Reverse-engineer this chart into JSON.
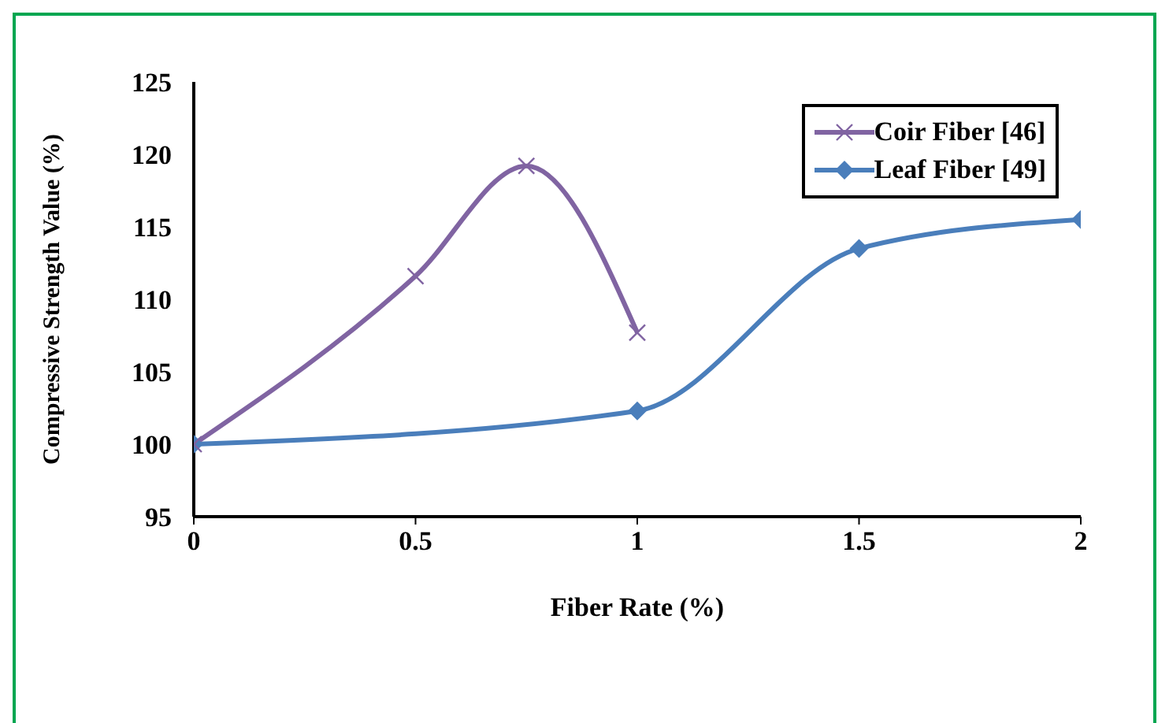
{
  "chart_data": {
    "type": "line",
    "xlabel": "Fiber Rate (%)",
    "ylabel": "Compressive Strength Value (%)",
    "xlim": [
      0,
      2
    ],
    "xticks": [
      0,
      0.5,
      1,
      1.5,
      2
    ],
    "ylim": [
      95,
      125
    ],
    "yticks": [
      95,
      100,
      105,
      110,
      115,
      120,
      125
    ],
    "grid": false,
    "legend": "top right",
    "line_style": "solid",
    "series": [
      {
        "name": "Coir Fiber [46]",
        "color": "#8064a2",
        "marker": "cross",
        "x": [
          0,
          0.5,
          0.75,
          1
        ],
        "values": [
          100,
          111.6,
          119.2,
          107.7
        ]
      },
      {
        "name": "Leaf Fiber [49]",
        "color": "#4a7ebb",
        "marker": "diamond",
        "x": [
          0,
          1,
          1.5,
          2
        ],
        "values": [
          100,
          102.3,
          113.5,
          115.5
        ]
      }
    ]
  }
}
